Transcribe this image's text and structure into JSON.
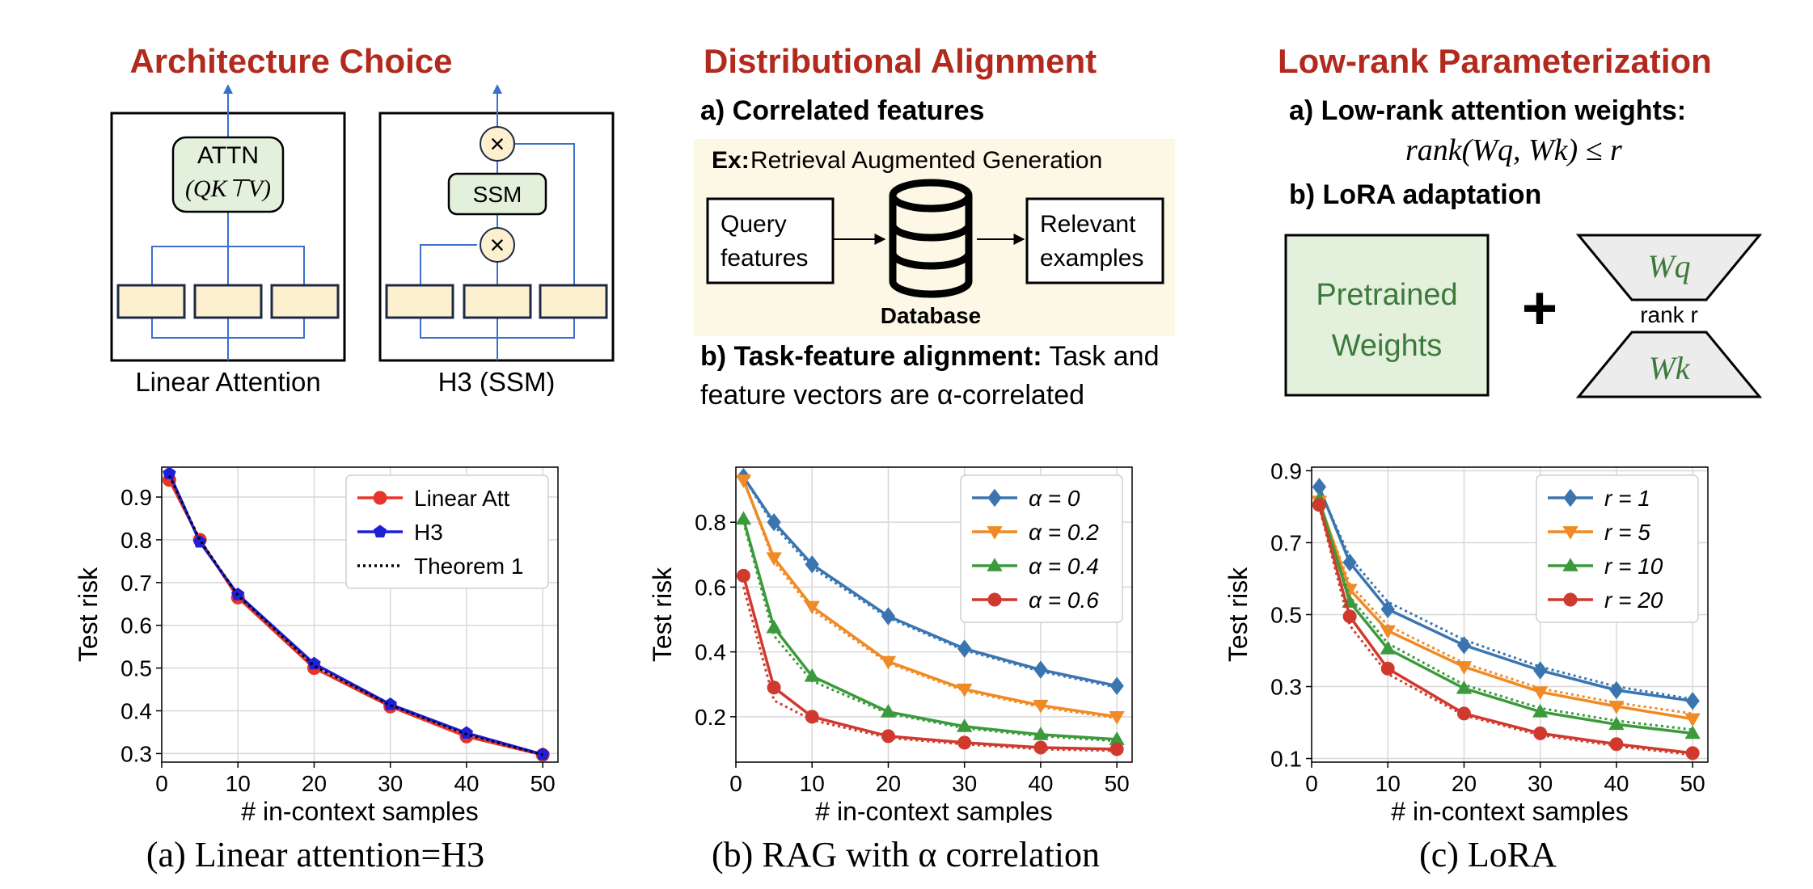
{
  "headings": {
    "architecture": "Architecture Choice",
    "distributional": "Distributional Alignment",
    "lowrank": "Low-rank Parameterization"
  },
  "arch": {
    "attn_label": "ATTN",
    "attn_formula": "(QK⊤V)",
    "ssm_label": "SSM",
    "mult_symbol": "×",
    "linear_label": "Linear Attention",
    "h3_label": "H3 (SSM)"
  },
  "dist": {
    "a_title": "a) Correlated features",
    "ex_prefix": "Ex:",
    "ex_text": "Retrieval Augmented Generation",
    "query_line1": "Query",
    "query_line2": "features",
    "relevant_line1": "Relevant",
    "relevant_line2": "examples",
    "database": "Database",
    "b_title": "b) Task-feature alignment:",
    "b_text1": "Task and",
    "b_text2": "feature vectors are α-correlated"
  },
  "lowrank": {
    "a_title": "a) Low-rank attention weights:",
    "formula": "rank(Wq, Wk) ≤ r",
    "b_title": "b) LoRA adaptation",
    "pretrained_line1": "Pretrained",
    "pretrained_line2": "Weights",
    "plus": "+",
    "wq": "Wq",
    "wk": "Wk",
    "rank_label": "rank r"
  },
  "captions": {
    "a": "(a) Linear attention=H3",
    "b": "(b) RAG with α correlation",
    "c": "(c) LoRA"
  },
  "colors": {
    "heading": "#b22a1e",
    "block_fill": "#fdf0cf",
    "attn_fill": "#e3f0dc",
    "wire": "#3a6fcc",
    "rag_bg": "#fdf8e6",
    "pretrained_fill": "#e3f0dc",
    "lora_green": "#3c7a3c"
  },
  "chart_data": [
    {
      "type": "line",
      "xlabel": "# in-context samples",
      "ylabel": "Test risk",
      "xlim": [
        0,
        52
      ],
      "ylim": [
        0.28,
        0.97
      ],
      "xticks": [
        0,
        10,
        20,
        30,
        40,
        50
      ],
      "yticks": [
        0.3,
        0.4,
        0.5,
        0.6,
        0.7,
        0.8,
        0.9
      ],
      "ytick_labels": [
        "0.3",
        "0.4",
        "0.5",
        "0.6",
        "0.7",
        "0.8",
        "0.9"
      ],
      "grid": true,
      "legend": "top-right",
      "x": [
        1,
        5,
        10,
        20,
        30,
        40,
        50
      ],
      "series": [
        {
          "name": "Linear Att",
          "values": [
            0.94,
            0.8,
            0.665,
            0.5,
            0.41,
            0.34,
            0.297
          ],
          "color": "#e8342a",
          "marker": "circle",
          "style": "solid"
        },
        {
          "name": "H3",
          "values": [
            0.955,
            0.795,
            0.672,
            0.51,
            0.415,
            0.348,
            0.298
          ],
          "color": "#1f1fd8",
          "marker": "pentagon",
          "style": "solid"
        },
        {
          "name": "Theorem 1",
          "values": [
            0.95,
            0.8,
            0.67,
            0.505,
            0.413,
            0.345,
            0.297
          ],
          "color": "#000000",
          "marker": "none",
          "style": "dotted"
        }
      ]
    },
    {
      "type": "line",
      "xlabel": "# in-context samples",
      "ylabel": "Test risk",
      "xlim": [
        0,
        52
      ],
      "ylim": [
        0.06,
        0.97
      ],
      "xticks": [
        0,
        10,
        20,
        30,
        40,
        50
      ],
      "yticks": [
        0.2,
        0.4,
        0.6,
        0.8
      ],
      "ytick_labels": [
        "0.2",
        "0.4",
        "0.6",
        "0.8"
      ],
      "grid": true,
      "legend": "top-right",
      "x": [
        1,
        5,
        10,
        20,
        30,
        40,
        50
      ],
      "series": [
        {
          "name": "α = 0",
          "values": [
            0.94,
            0.8,
            0.67,
            0.51,
            0.41,
            0.345,
            0.295
          ],
          "dotted": [
            0.94,
            0.79,
            0.66,
            0.505,
            0.405,
            0.34,
            0.29
          ],
          "color": "#3a75b0",
          "marker": "diamond"
        },
        {
          "name": "α = 0.2",
          "values": [
            0.93,
            0.69,
            0.54,
            0.37,
            0.285,
            0.235,
            0.2
          ],
          "dotted": [
            0.93,
            0.68,
            0.53,
            0.365,
            0.28,
            0.23,
            0.195
          ],
          "color": "#f08a24",
          "marker": "triangle-down"
        },
        {
          "name": "α = 0.4",
          "values": [
            0.81,
            0.475,
            0.325,
            0.215,
            0.17,
            0.145,
            0.13
          ],
          "dotted": [
            0.8,
            0.45,
            0.31,
            0.21,
            0.165,
            0.14,
            0.125
          ],
          "color": "#3c9a3c",
          "marker": "triangle-up"
        },
        {
          "name": "α = 0.6",
          "values": [
            0.635,
            0.29,
            0.2,
            0.14,
            0.12,
            0.105,
            0.1
          ],
          "dotted": [
            0.6,
            0.25,
            0.19,
            0.135,
            0.115,
            0.1,
            0.095
          ],
          "color": "#d03a2e",
          "marker": "circle"
        }
      ]
    },
    {
      "type": "line",
      "xlabel": "# in-context samples",
      "ylabel": "Test risk",
      "xlim": [
        0,
        52
      ],
      "ylim": [
        0.09,
        0.91
      ],
      "xticks": [
        0,
        10,
        20,
        30,
        40,
        50
      ],
      "yticks": [
        0.1,
        0.3,
        0.5,
        0.7,
        0.9
      ],
      "ytick_labels": [
        "0.1",
        "0.3",
        "0.5",
        "0.7",
        "0.9"
      ],
      "grid": true,
      "legend": "top-right",
      "x": [
        1,
        5,
        10,
        20,
        30,
        40,
        50
      ],
      "series": [
        {
          "name": "r = 1",
          "values": [
            0.855,
            0.645,
            0.515,
            0.415,
            0.345,
            0.29,
            0.26
          ],
          "dotted": [
            0.85,
            0.66,
            0.535,
            0.43,
            0.355,
            0.3,
            0.265
          ],
          "color": "#3a75b0",
          "marker": "diamond"
        },
        {
          "name": "r = 5",
          "values": [
            0.815,
            0.57,
            0.455,
            0.355,
            0.285,
            0.245,
            0.21
          ],
          "dotted": [
            0.81,
            0.585,
            0.47,
            0.365,
            0.295,
            0.255,
            0.225
          ],
          "color": "#f08a24",
          "marker": "triangle-down"
        },
        {
          "name": "r = 10",
          "values": [
            0.82,
            0.535,
            0.405,
            0.295,
            0.23,
            0.195,
            0.17
          ],
          "dotted": [
            0.81,
            0.55,
            0.42,
            0.305,
            0.24,
            0.205,
            0.18
          ],
          "color": "#3c9a3c",
          "marker": "triangle-up"
        },
        {
          "name": "r = 20",
          "values": [
            0.805,
            0.495,
            0.35,
            0.225,
            0.17,
            0.14,
            0.115
          ],
          "dotted": [
            0.8,
            0.47,
            0.335,
            0.22,
            0.165,
            0.135,
            0.11
          ],
          "color": "#d03a2e",
          "marker": "circle"
        }
      ]
    }
  ]
}
